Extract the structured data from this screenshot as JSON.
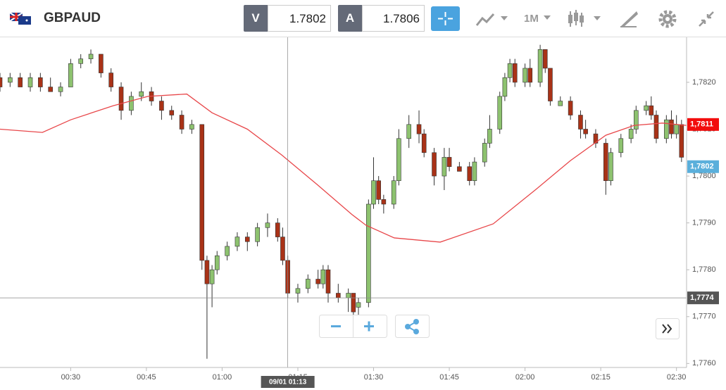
{
  "toolbar": {
    "symbol": "GBPAUD",
    "bid_label": "V",
    "bid": "1.7802",
    "ask_label": "A",
    "ask": "1.7806",
    "timeframe": "1M"
  },
  "chart_data": {
    "type": "candlestick",
    "xlim": [
      16,
      152
    ],
    "ylim": [
      1.7759,
      1.7829
    ],
    "xticks": [
      {
        "value": 30,
        "label": "00:30"
      },
      {
        "value": 45,
        "label": "00:45"
      },
      {
        "value": 60,
        "label": "01:00"
      },
      {
        "value": 75,
        "label": "01:15"
      },
      {
        "value": 90,
        "label": "01:30"
      },
      {
        "value": 105,
        "label": "01:45"
      },
      {
        "value": 120,
        "label": "02:00"
      },
      {
        "value": 135,
        "label": "02:15"
      },
      {
        "value": 150,
        "label": "02:30"
      }
    ],
    "yticks": [
      {
        "value": 1.776,
        "label": "1,7760"
      },
      {
        "value": 1.777,
        "label": "1,7770"
      },
      {
        "value": 1.778,
        "label": "1,7780"
      },
      {
        "value": 1.779,
        "label": "1,7790"
      },
      {
        "value": 1.78,
        "label": "1,7800"
      },
      {
        "value": 1.781,
        "label": "1,7810"
      },
      {
        "value": 1.782,
        "label": "1,7820"
      }
    ],
    "grid": true,
    "up_color": "#8dc26f",
    "down_color": "#a93217",
    "candles": [
      [
        16,
        1.7821,
        1.7822,
        1.7818,
        1.7819
      ],
      [
        18,
        1.782,
        1.7822,
        1.7819,
        1.7821
      ],
      [
        20,
        1.7821,
        1.7822,
        1.7819,
        1.7819
      ],
      [
        22,
        1.7819,
        1.7822,
        1.7818,
        1.7821
      ],
      [
        24,
        1.7821,
        1.7822,
        1.7818,
        1.7819
      ],
      [
        26,
        1.7819,
        1.7821,
        1.7818,
        1.7818
      ],
      [
        28,
        1.7818,
        1.782,
        1.7817,
        1.7819
      ],
      [
        30,
        1.7819,
        1.7825,
        1.7819,
        1.7824
      ],
      [
        32,
        1.7824,
        1.7826,
        1.7823,
        1.7825
      ],
      [
        34,
        1.7825,
        1.7827,
        1.7824,
        1.7826
      ],
      [
        36,
        1.7826,
        1.7826,
        1.7821,
        1.7822
      ],
      [
        38,
        1.7822,
        1.7823,
        1.7818,
        1.7819
      ],
      [
        40,
        1.7819,
        1.782,
        1.7812,
        1.7814
      ],
      [
        42,
        1.7814,
        1.7818,
        1.7813,
        1.7817
      ],
      [
        44,
        1.7817,
        1.782,
        1.7816,
        1.7818
      ],
      [
        46,
        1.7818,
        1.7819,
        1.7815,
        1.7816
      ],
      [
        48,
        1.7816,
        1.7817,
        1.7812,
        1.7814
      ],
      [
        50,
        1.7814,
        1.7815,
        1.7812,
        1.7813
      ],
      [
        52,
        1.7813,
        1.7814,
        1.7809,
        1.781
      ],
      [
        54,
        1.781,
        1.7812,
        1.7809,
        1.7811
      ],
      [
        56,
        1.7811,
        1.7811,
        1.778,
        1.7782
      ],
      [
        57,
        1.7782,
        1.7783,
        1.7761,
        1.7777
      ],
      [
        58,
        1.7777,
        1.7781,
        1.7772,
        1.778
      ],
      [
        59,
        1.778,
        1.7784,
        1.7779,
        1.7783
      ],
      [
        61,
        1.7783,
        1.7786,
        1.7782,
        1.7785
      ],
      [
        63,
        1.7785,
        1.7788,
        1.7784,
        1.7787
      ],
      [
        65,
        1.7787,
        1.7788,
        1.7784,
        1.7786
      ],
      [
        67,
        1.7786,
        1.779,
        1.7785,
        1.7789
      ],
      [
        69,
        1.7789,
        1.7792,
        1.7787,
        1.779
      ],
      [
        71,
        1.779,
        1.7791,
        1.7786,
        1.7787
      ],
      [
        72,
        1.7787,
        1.7789,
        1.7781,
        1.7782
      ],
      [
        73,
        1.7782,
        1.7783,
        1.7774,
        1.7775
      ],
      [
        75,
        1.7775,
        1.7777,
        1.7773,
        1.7776
      ],
      [
        77,
        1.7776,
        1.7779,
        1.7775,
        1.7778
      ],
      [
        79,
        1.7778,
        1.778,
        1.7776,
        1.7777
      ],
      [
        80,
        1.7777,
        1.7781,
        1.7776,
        1.778
      ],
      [
        81,
        1.778,
        1.7781,
        1.7773,
        1.7775
      ],
      [
        83,
        1.7775,
        1.7777,
        1.7773,
        1.7774
      ],
      [
        85,
        1.7774,
        1.7776,
        1.7771,
        1.7775
      ],
      [
        86,
        1.7775,
        1.7775,
        1.777,
        1.7771
      ],
      [
        87,
        1.7772,
        1.7774,
        1.777,
        1.7773
      ],
      [
        89,
        1.7773,
        1.7795,
        1.7772,
        1.7794
      ],
      [
        90,
        1.7794,
        1.7804,
        1.7793,
        1.7799
      ],
      [
        91,
        1.7799,
        1.78,
        1.7794,
        1.7795
      ],
      [
        92,
        1.7795,
        1.7796,
        1.7792,
        1.7794
      ],
      [
        94,
        1.7794,
        1.78,
        1.7793,
        1.7799
      ],
      [
        95,
        1.7799,
        1.781,
        1.7798,
        1.7808
      ],
      [
        97,
        1.7808,
        1.7813,
        1.7806,
        1.7811
      ],
      [
        99,
        1.7811,
        1.7814,
        1.7807,
        1.7809
      ],
      [
        100,
        1.7809,
        1.781,
        1.7804,
        1.7805
      ],
      [
        102,
        1.7805,
        1.7806,
        1.7798,
        1.78
      ],
      [
        104,
        1.78,
        1.7806,
        1.7797,
        1.7804
      ],
      [
        105,
        1.7804,
        1.7806,
        1.7801,
        1.7802
      ],
      [
        107,
        1.7802,
        1.7803,
        1.7801,
        1.7801
      ],
      [
        109,
        1.7802,
        1.7803,
        1.7798,
        1.7799
      ],
      [
        110,
        1.7799,
        1.7804,
        1.7798,
        1.7803
      ],
      [
        112,
        1.7803,
        1.7808,
        1.7802,
        1.7807
      ],
      [
        113,
        1.7807,
        1.7813,
        1.7806,
        1.781
      ],
      [
        115,
        1.781,
        1.7818,
        1.7809,
        1.7817
      ],
      [
        116,
        1.7817,
        1.7822,
        1.7816,
        1.7821
      ],
      [
        117,
        1.7821,
        1.7825,
        1.782,
        1.7824
      ],
      [
        118,
        1.7824,
        1.7825,
        1.7819,
        1.782
      ],
      [
        120,
        1.782,
        1.7824,
        1.7819,
        1.7823
      ],
      [
        121,
        1.7823,
        1.7825,
        1.7819,
        1.782
      ],
      [
        123,
        1.782,
        1.7828,
        1.7819,
        1.7827
      ],
      [
        124,
        1.7827,
        1.7827,
        1.7822,
        1.7823
      ],
      [
        125,
        1.7823,
        1.7823,
        1.7815,
        1.7816
      ],
      [
        127,
        1.7815,
        1.7817,
        1.7815,
        1.7816
      ],
      [
        129,
        1.7816,
        1.7817,
        1.7812,
        1.7813
      ],
      [
        131,
        1.7813,
        1.7814,
        1.7808,
        1.781
      ],
      [
        132,
        1.781,
        1.7812,
        1.7808,
        1.7809
      ],
      [
        134,
        1.7809,
        1.781,
        1.7806,
        1.7807
      ],
      [
        136,
        1.7807,
        1.7808,
        1.7796,
        1.7799
      ],
      [
        137,
        1.7799,
        1.7806,
        1.7798,
        1.7805
      ],
      [
        139,
        1.7805,
        1.7809,
        1.7804,
        1.7808
      ],
      [
        141,
        1.7808,
        1.7811,
        1.7807,
        1.781
      ],
      [
        142,
        1.781,
        1.7815,
        1.7809,
        1.7814
      ],
      [
        144,
        1.7814,
        1.7816,
        1.7813,
        1.7815
      ],
      [
        145,
        1.7815,
        1.7817,
        1.7812,
        1.7813
      ],
      [
        146,
        1.7813,
        1.7814,
        1.7807,
        1.7808
      ],
      [
        148,
        1.7808,
        1.7813,
        1.7807,
        1.7812
      ],
      [
        149,
        1.7812,
        1.7814,
        1.7808,
        1.7809
      ],
      [
        150,
        1.7809,
        1.7813,
        1.7808,
        1.7811
      ],
      [
        151,
        1.7811,
        1.7812,
        1.7803,
        1.7804
      ]
    ],
    "moving_average": {
      "color": "#e8474a",
      "x": [
        16,
        24.4,
        30,
        38.4,
        45.3,
        53,
        58,
        65,
        71.8,
        78.8,
        85.7,
        88.5,
        94.1,
        103.2,
        113.7,
        122,
        129,
        136,
        141.6,
        147.2,
        152
      ],
      "values": [
        1.781,
        1.78093,
        1.7812,
        1.7815,
        1.7817,
        1.78175,
        1.78135,
        1.781,
        1.78045,
        1.77982,
        1.77918,
        1.77895,
        1.77868,
        1.77859,
        1.77898,
        1.7797,
        1.78033,
        1.78087,
        1.78108,
        1.78113,
        1.78108
      ]
    },
    "price_markers": [
      {
        "value": 1.7811,
        "label": "1,7811",
        "color": "#f20d0d"
      },
      {
        "value": 1.7802,
        "label": "1,7802",
        "color": "#5aafdb"
      }
    ],
    "crosshair": {
      "x": 73,
      "x_label": "09/01 01:13",
      "y": 1.7774,
      "y_label": "1,7774"
    }
  }
}
